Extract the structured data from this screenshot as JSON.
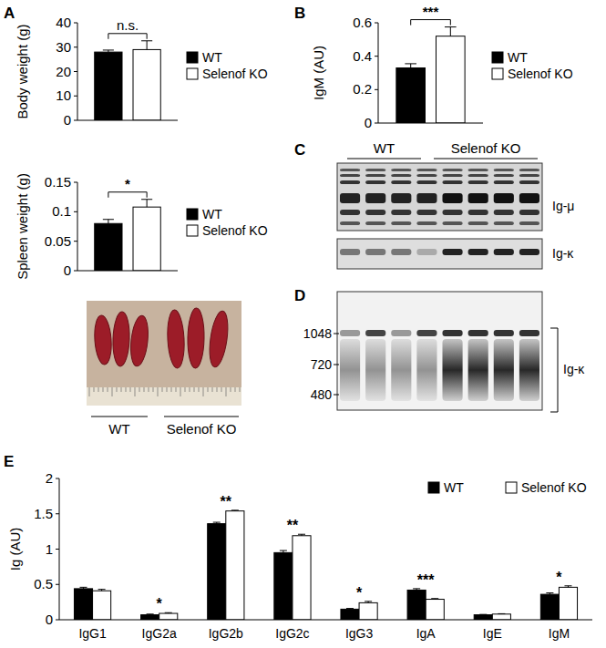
{
  "chart_data": [
    {
      "type": "bar",
      "y_label": "Body weight (g)",
      "categories": [
        null
      ],
      "series": [
        {
          "name": "WT",
          "color": "#000000",
          "values": [
            28
          ],
          "errors": [
            0.8
          ]
        },
        {
          "name": "Selenof KO",
          "color": "#ffffff",
          "values": [
            29
          ],
          "errors": [
            3.6
          ]
        }
      ],
      "ylim": [
        0,
        40
      ],
      "yticks": [
        0,
        10,
        20,
        30,
        40
      ],
      "legend": "right",
      "annotations": [
        {
          "text": "n.s."
        }
      ]
    },
    {
      "type": "bar",
      "y_label": "Spleen weight (g)",
      "categories": [
        null
      ],
      "series": [
        {
          "name": "WT",
          "color": "#000000",
          "values": [
            0.08
          ],
          "errors": [
            0.007
          ]
        },
        {
          "name": "Selenof KO",
          "color": "#ffffff",
          "values": [
            0.108
          ],
          "errors": [
            0.013
          ]
        }
      ],
      "ylim": [
        0,
        0.15
      ],
      "yticks": [
        0,
        0.05,
        0.1,
        0.15
      ],
      "legend": "right",
      "annotations": [
        {
          "text": "*"
        }
      ]
    },
    {
      "type": "bar",
      "y_label": "IgM (AU)",
      "categories": [
        null
      ],
      "series": [
        {
          "name": "WT",
          "color": "#000000",
          "values": [
            0.33
          ],
          "errors": [
            0.025
          ]
        },
        {
          "name": "Selenof KO",
          "color": "#ffffff",
          "values": [
            0.52
          ],
          "errors": [
            0.055
          ]
        }
      ],
      "ylim": [
        0,
        0.6
      ],
      "yticks": [
        0,
        0.2,
        0.4,
        0.6
      ],
      "legend": "right",
      "annotations": [
        {
          "text": "***"
        }
      ]
    },
    {
      "type": "bar",
      "y_label": "Ig (AU)",
      "categories": [
        "IgG1",
        "IgG2a",
        "IgG2b",
        "IgG2c",
        "IgG3",
        "IgA",
        "IgE",
        "IgM"
      ],
      "series": [
        {
          "name": "WT",
          "color": "#000000",
          "values": [
            0.44,
            0.07,
            1.36,
            0.95,
            0.15,
            0.42,
            0.07,
            0.36
          ],
          "errors": [
            0.02,
            0.01,
            0.02,
            0.03,
            0.01,
            0.02,
            0.005,
            0.02
          ]
        },
        {
          "name": "Selenof KO",
          "color": "#ffffff",
          "values": [
            0.41,
            0.09,
            1.54,
            1.19,
            0.24,
            0.29,
            0.08,
            0.46
          ],
          "errors": [
            0.02,
            0.01,
            0.01,
            0.02,
            0.02,
            0.01,
            0.005,
            0.02
          ]
        }
      ],
      "ylim": [
        0,
        2
      ],
      "yticks": [
        0,
        0.5,
        1,
        1.5,
        2
      ],
      "legend": "upper right",
      "annotations": [
        {
          "category": "IgG2a",
          "text": "*"
        },
        {
          "category": "IgG2b",
          "text": "**"
        },
        {
          "category": "IgG2c",
          "text": "**"
        },
        {
          "category": "IgG3",
          "text": "*"
        },
        {
          "category": "IgA",
          "text": "***"
        },
        {
          "category": "IgM",
          "text": "*"
        }
      ]
    }
  ],
  "panel_labels": [
    "A",
    "B",
    "C",
    "D",
    "E"
  ],
  "spleen_photo": {
    "groups": [
      "WT",
      "Selenof KO"
    ]
  },
  "blot_c": {
    "groups": [
      "WT",
      "Selenof KO"
    ],
    "bands": [
      "Ig-μ",
      "Ig-κ"
    ]
  },
  "blot_d": {
    "markers": [
      1048,
      720,
      480
    ],
    "bracket_label": "Ig-κ"
  }
}
